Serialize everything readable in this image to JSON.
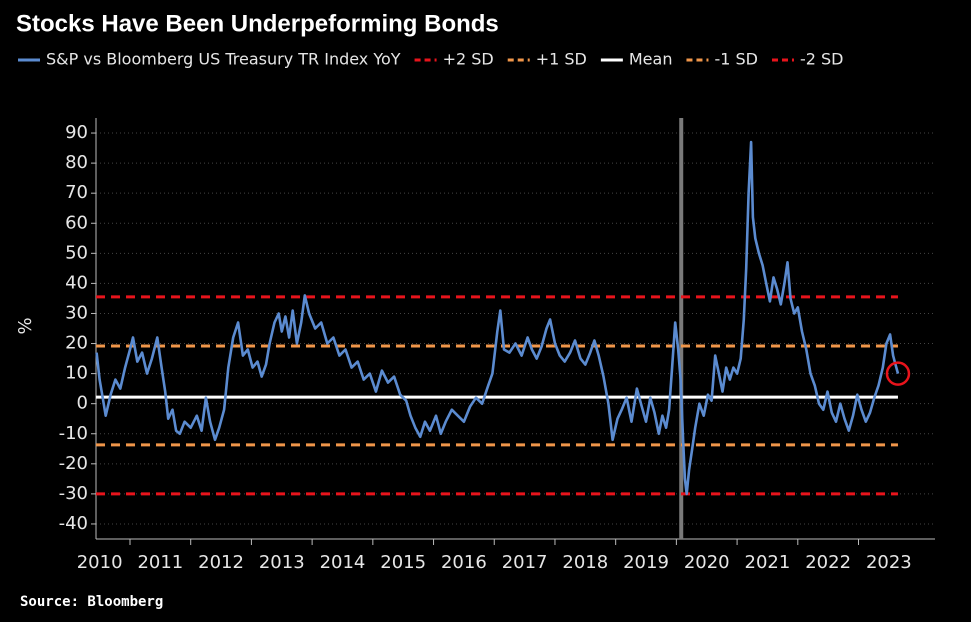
{
  "chart_data": {
    "type": "line",
    "title": "Stocks Have Been Underpeforming Bonds",
    "source": "Source: Bloomberg",
    "y_label": "%",
    "xlim": [
      2010.44,
      2024.26
    ],
    "xticks": [
      2010,
      2011,
      2012,
      2013,
      2014,
      2015,
      2016,
      2017,
      2018,
      2019,
      2020,
      2021,
      2022,
      2023
    ],
    "ylim": [
      -45,
      95
    ],
    "yticks": [
      -40,
      -30,
      -20,
      -10,
      0,
      10,
      20,
      30,
      40,
      50,
      60,
      70,
      80,
      90
    ],
    "grid": true,
    "series": [
      {
        "name": "S&P vs Bloomberg US Treasury TR Index YoY",
        "color": "#5b8bd0",
        "x": [
          2010.45,
          2010.5,
          2010.55,
          2010.6,
          2010.68,
          2010.76,
          2010.84,
          2010.92,
          2011.0,
          2011.05,
          2011.12,
          2011.2,
          2011.28,
          2011.36,
          2011.45,
          2011.52,
          2011.58,
          2011.63,
          2011.7,
          2011.76,
          2011.82,
          2011.9,
          2012.0,
          2012.1,
          2012.18,
          2012.25,
          2012.32,
          2012.4,
          2012.47,
          2012.55,
          2012.62,
          2012.7,
          2012.78,
          2012.86,
          2012.94,
          2013.02,
          2013.1,
          2013.17,
          2013.24,
          2013.3,
          2013.38,
          2013.45,
          2013.5,
          2013.56,
          2013.62,
          2013.68,
          2013.75,
          2013.82,
          2013.88,
          2013.95,
          2014.05,
          2014.15,
          2014.25,
          2014.35,
          2014.45,
          2014.55,
          2014.65,
          2014.75,
          2014.85,
          2014.95,
          2015.05,
          2015.15,
          2015.25,
          2015.35,
          2015.45,
          2015.55,
          2015.62,
          2015.7,
          2015.78,
          2015.86,
          2015.94,
          2016.04,
          2016.12,
          2016.2,
          2016.3,
          2016.4,
          2016.5,
          2016.6,
          2016.7,
          2016.8,
          2016.9,
          2016.97,
          2017.05,
          2017.1,
          2017.16,
          2017.25,
          2017.35,
          2017.45,
          2017.55,
          2017.62,
          2017.7,
          2017.78,
          2017.86,
          2017.92,
          2018.0,
          2018.08,
          2018.16,
          2018.25,
          2018.33,
          2018.42,
          2018.5,
          2018.58,
          2018.65,
          2018.72,
          2018.8,
          2018.88,
          2018.95,
          2019.03,
          2019.1,
          2019.18,
          2019.26,
          2019.35,
          2019.43,
          2019.5,
          2019.57,
          2019.64,
          2019.71,
          2019.77,
          2019.83,
          2019.88,
          2019.93,
          2019.98,
          2020.03,
          2020.07,
          2020.11,
          2020.14,
          2020.17,
          2020.21,
          2020.26,
          2020.31,
          2020.38,
          2020.45,
          2020.52,
          2020.58,
          2020.64,
          2020.7,
          2020.76,
          2020.82,
          2020.88,
          2020.94,
          2021.0,
          2021.06,
          2021.11,
          2021.15,
          2021.19,
          2021.23,
          2021.26,
          2021.3,
          2021.36,
          2021.42,
          2021.48,
          2021.54,
          2021.6,
          2021.66,
          2021.72,
          2021.78,
          2021.83,
          2021.88,
          2021.94,
          2022.0,
          2022.07,
          2022.14,
          2022.21,
          2022.28,
          2022.35,
          2022.42,
          2022.49,
          2022.56,
          2022.63,
          2022.7,
          2022.77,
          2022.84,
          2022.91,
          2022.98,
          2023.05,
          2023.12,
          2023.19,
          2023.26,
          2023.33,
          2023.4,
          2023.46,
          2023.52,
          2023.57,
          2023.61,
          2023.65
        ],
        "values": [
          17,
          8,
          2,
          -4,
          3,
          8,
          5,
          12,
          18,
          22,
          14,
          17,
          10,
          15,
          22,
          12,
          4,
          -5,
          -2,
          -9,
          -10,
          -6,
          -8,
          -4,
          -9,
          2,
          -6,
          -12,
          -8,
          -2,
          12,
          22,
          27,
          16,
          18,
          12,
          14,
          9,
          13,
          20,
          27,
          30,
          24,
          29,
          22,
          31,
          20,
          27,
          36,
          30,
          25,
          27,
          20,
          22,
          16,
          18,
          12,
          14,
          8,
          10,
          4,
          11,
          7,
          9,
          3,
          1,
          -4,
          -8,
          -11,
          -6,
          -9,
          -4,
          -10,
          -6,
          -2,
          -4,
          -6,
          -1,
          2,
          0,
          6,
          10,
          24,
          31,
          18,
          17,
          20,
          16,
          22,
          18,
          15,
          19,
          25,
          28,
          20,
          16,
          14,
          17,
          21,
          15,
          13,
          17,
          21,
          16,
          9,
          0,
          -12,
          -5,
          -2,
          2,
          -6,
          5,
          -1,
          -6,
          2,
          -3,
          -10,
          -4,
          -8,
          -2,
          12,
          27,
          18,
          8,
          -12,
          -25,
          -30,
          -22,
          -15,
          -8,
          0,
          -4,
          3,
          1,
          16,
          10,
          4,
          12,
          8,
          12,
          10,
          15,
          28,
          45,
          70,
          87,
          62,
          55,
          50,
          46,
          40,
          34,
          42,
          38,
          33,
          40,
          47,
          35,
          30,
          32,
          24,
          18,
          10,
          6,
          0,
          -2,
          4,
          -3,
          -6,
          0,
          -5,
          -9,
          -4,
          3,
          -2,
          -6,
          -3,
          2,
          6,
          12,
          20,
          23,
          16,
          13,
          10
        ]
      }
    ],
    "reference_lines": [
      {
        "name": "+2 SD",
        "value": 35.5,
        "color": "#e8141c",
        "dashed": true
      },
      {
        "name": "+1 SD",
        "value": 19.2,
        "color": "#f0964a",
        "dashed": true
      },
      {
        "name": "Mean",
        "value": 2.2,
        "color": "#ffffff",
        "dashed": false
      },
      {
        "name": "-1 SD",
        "value": -13.7,
        "color": "#f0964a",
        "dashed": true
      },
      {
        "name": "-2 SD",
        "value": -30,
        "color": "#e8141c",
        "dashed": true
      }
    ],
    "vline": {
      "x": 2020.08,
      "color": "#7a7a7a"
    },
    "highlight": {
      "x": 2023.65,
      "value": 10,
      "color": "#e8141c"
    }
  }
}
